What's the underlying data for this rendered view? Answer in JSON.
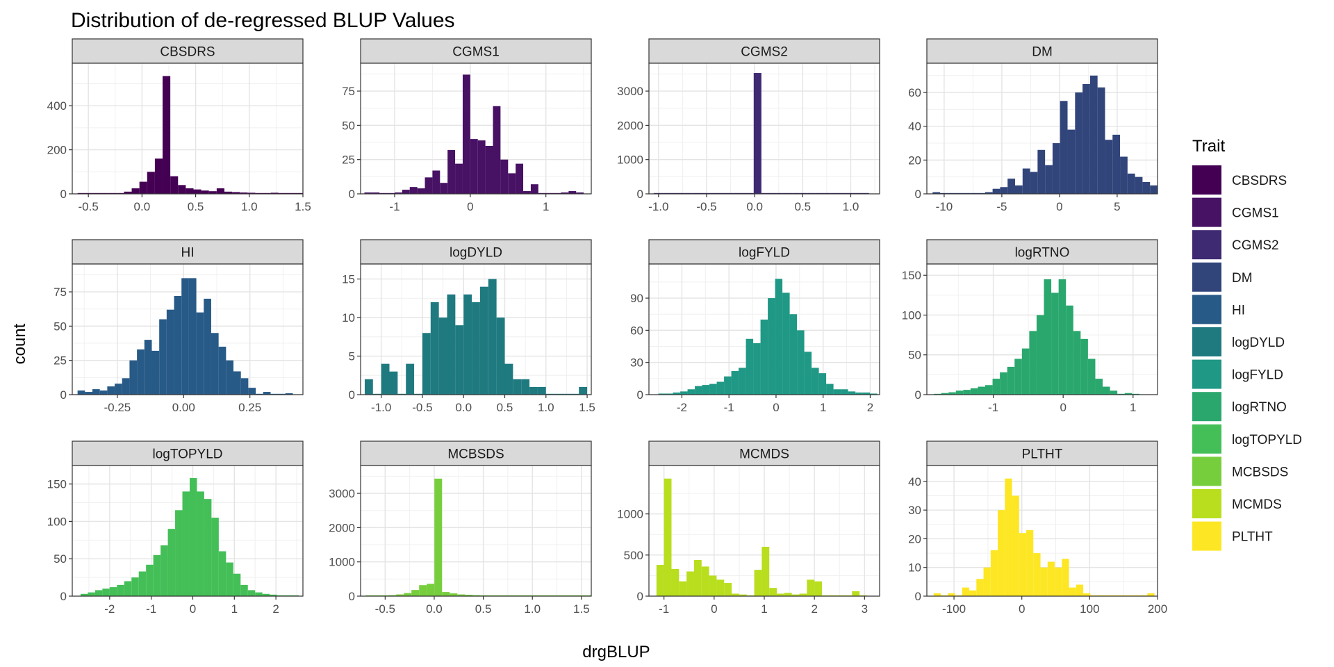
{
  "chart_data": {
    "type": "bar",
    "title": "Distribution of de-regressed BLUP Values",
    "xlabel": "drgBLUP",
    "ylabel": "count",
    "grid": true,
    "legend": {
      "title": "Trait",
      "placement": "right",
      "entries": [
        {
          "label": "CBSDRS",
          "color": "#440154"
        },
        {
          "label": "CGMS1",
          "color": "#471164"
        },
        {
          "label": "CGMS2",
          "color": "#3E2A72"
        },
        {
          "label": "DM",
          "color": "#31457B"
        },
        {
          "label": "HI",
          "color": "#275A87"
        },
        {
          "label": "logDYLD",
          "color": "#1F7A80"
        },
        {
          "label": "logFYLD",
          "color": "#1F9885"
        },
        {
          "label": "logRTNO",
          "color": "#2AA76D"
        },
        {
          "label": "logTOPYLD",
          "color": "#44BF57"
        },
        {
          "label": "MCBSDS",
          "color": "#77CE3D"
        },
        {
          "label": "MCMDS",
          "color": "#B8DE1E"
        },
        {
          "label": "PLTHT",
          "color": "#FDE725"
        }
      ]
    },
    "panels": [
      {
        "name": "CBSDRS",
        "color": "#440154",
        "xlim": [
          -0.65,
          1.5
        ],
        "ylim": [
          0,
          560
        ],
        "xticks": [
          -0.5,
          0.0,
          0.5,
          1.0,
          1.5
        ],
        "xtick_labels": [
          "-0.5",
          "0.0",
          "0.5",
          "1.0",
          "1.5"
        ],
        "yticks": [
          0,
          200,
          400
        ],
        "ytick_labels": [
          "0",
          "200",
          "400"
        ],
        "bin_start": -0.6,
        "bin_width": 0.072,
        "counts": [
          0,
          0,
          0,
          0,
          0,
          3,
          10,
          25,
          55,
          100,
          160,
          535,
          80,
          40,
          25,
          20,
          15,
          12,
          25,
          10,
          8,
          6,
          5,
          3,
          3,
          5,
          3,
          2,
          2,
          2
        ]
      },
      {
        "name": "CGMS1",
        "color": "#471164",
        "xlim": [
          -1.45,
          1.6
        ],
        "ylim": [
          0,
          90
        ],
        "xticks": [
          -1,
          0,
          1
        ],
        "xtick_labels": [
          "-1",
          "0",
          "1"
        ],
        "yticks": [
          0,
          25,
          50,
          75
        ],
        "ytick_labels": [
          "0",
          "25",
          "50",
          "75"
        ],
        "bin_start": -1.4,
        "bin_width": 0.1,
        "counts": [
          1,
          1,
          0,
          0,
          1,
          3,
          5,
          4,
          12,
          17,
          8,
          32,
          22,
          87,
          40,
          39,
          35,
          64,
          25,
          15,
          22,
          2,
          7,
          0,
          0,
          0,
          1,
          2,
          1
        ]
      },
      {
        "name": "CGMS2",
        "color": "#3E2A72",
        "xlim": [
          -1.1,
          1.3
        ],
        "ylim": [
          0,
          3600
        ],
        "xticks": [
          -1.0,
          -0.5,
          0.0,
          0.5,
          1.0
        ],
        "xtick_labels": [
          "-1.0",
          "-0.5",
          "0.0",
          "0.5",
          "1.0"
        ],
        "yticks": [
          0,
          1000,
          2000,
          3000
        ],
        "ytick_labels": [
          "0",
          "1000",
          "2000",
          "3000"
        ],
        "bin_start": -1.05,
        "bin_width": 0.08,
        "counts": [
          0,
          0,
          0,
          0,
          0,
          0,
          0,
          0,
          0,
          0,
          0,
          0,
          0,
          3528,
          0,
          0,
          0,
          0,
          0,
          0,
          0,
          0,
          0,
          0,
          0,
          0,
          0,
          0
        ]
      },
      {
        "name": "DM",
        "color": "#31457B",
        "xlim": [
          -11.5,
          8.5
        ],
        "ylim": [
          0,
          73
        ],
        "xticks": [
          -10,
          -5,
          0,
          5
        ],
        "xtick_labels": [
          "-10",
          "-5",
          "0",
          "5"
        ],
        "yticks": [
          0,
          20,
          40,
          60
        ],
        "ytick_labels": [
          "0",
          "20",
          "40",
          "60"
        ],
        "bin_start": -11,
        "bin_width": 0.65,
        "counts": [
          1,
          0,
          0,
          0,
          0,
          0,
          0,
          1,
          3,
          4,
          9,
          5,
          15,
          13,
          26,
          17,
          30,
          55,
          38,
          60,
          65,
          70,
          63,
          32,
          35,
          22,
          12,
          10,
          7,
          5,
          3,
          2
        ]
      },
      {
        "name": "HI",
        "color": "#275A87",
        "xlim": [
          -0.42,
          0.45
        ],
        "ylim": [
          0,
          90
        ],
        "xticks": [
          -0.25,
          0.0,
          0.25
        ],
        "xtick_labels": [
          "-0.25",
          "0.00",
          "0.25"
        ],
        "yticks": [
          0,
          25,
          50,
          75
        ],
        "ytick_labels": [
          "0",
          "25",
          "50",
          "75"
        ],
        "bin_start": -0.4,
        "bin_width": 0.028,
        "counts": [
          3,
          2,
          4,
          3,
          6,
          8,
          12,
          25,
          33,
          40,
          32,
          55,
          62,
          72,
          85,
          85,
          60,
          70,
          45,
          35,
          25,
          17,
          12,
          5,
          0,
          2,
          0,
          0,
          1
        ]
      },
      {
        "name": "logDYLD",
        "color": "#1F7A80",
        "xlim": [
          -1.25,
          1.55
        ],
        "ylim": [
          0,
          16
        ],
        "xticks": [
          -1.0,
          -0.5,
          0.0,
          0.5,
          1.0,
          1.5
        ],
        "xtick_labels": [
          "-1.0",
          "-0.5",
          "0.0",
          "0.5",
          "1.0",
          "1.5"
        ],
        "yticks": [
          0,
          5,
          10,
          15
        ],
        "ytick_labels": [
          "0",
          "5",
          "10",
          "15"
        ],
        "bin_start": -1.2,
        "bin_width": 0.1,
        "counts": [
          2,
          0,
          4,
          3,
          0,
          4,
          0,
          8,
          12,
          10,
          13,
          9,
          13,
          12,
          14,
          15,
          10,
          4,
          2,
          2,
          1,
          1,
          0,
          0,
          0,
          0,
          1
        ]
      },
      {
        "name": "logFYLD",
        "color": "#1F9885",
        "xlim": [
          -2.7,
          2.2
        ],
        "ylim": [
          0,
          115
        ],
        "xticks": [
          -2,
          -1,
          0,
          1,
          2
        ],
        "xtick_labels": [
          "-2",
          "-1",
          "0",
          "1",
          "2"
        ],
        "yticks": [
          0,
          30,
          60,
          90
        ],
        "ytick_labels": [
          "0",
          "30",
          "60",
          "90"
        ],
        "bin_start": -2.5,
        "bin_width": 0.155,
        "counts": [
          1,
          1,
          2,
          3,
          5,
          8,
          9,
          10,
          12,
          17,
          22,
          25,
          52,
          48,
          70,
          90,
          108,
          95,
          75,
          60,
          40,
          25,
          20,
          10,
          5,
          5,
          3,
          2,
          2,
          1
        ]
      },
      {
        "name": "logRTNO",
        "color": "#2AA76D",
        "xlim": [
          -1.95,
          1.35
        ],
        "ylim": [
          0,
          155
        ],
        "xticks": [
          -1,
          0,
          1
        ],
        "xtick_labels": [
          "-1",
          "0",
          "1"
        ],
        "yticks": [
          0,
          50,
          100,
          150
        ],
        "ytick_labels": [
          "0",
          "50",
          "100",
          "150"
        ],
        "bin_start": -1.85,
        "bin_width": 0.105,
        "counts": [
          1,
          2,
          3,
          5,
          6,
          8,
          10,
          12,
          20,
          28,
          35,
          45,
          58,
          80,
          100,
          145,
          128,
          145,
          112,
          80,
          70,
          45,
          20,
          10,
          5,
          0,
          2,
          1
        ]
      },
      {
        "name": "logTOPYLD",
        "color": "#44BF57",
        "xlim": [
          -2.9,
          2.65
        ],
        "ylim": [
          0,
          165
        ],
        "xticks": [
          -2,
          -1,
          0,
          1,
          2
        ],
        "xtick_labels": [
          "-2",
          "-1",
          "0",
          "1",
          "2"
        ],
        "yticks": [
          0,
          50,
          100,
          150
        ],
        "ytick_labels": [
          "0",
          "50",
          "100",
          "150"
        ],
        "bin_start": -2.7,
        "bin_width": 0.175,
        "counts": [
          3,
          5,
          8,
          10,
          12,
          15,
          20,
          25,
          33,
          42,
          55,
          68,
          90,
          115,
          140,
          158,
          140,
          130,
          105,
          60,
          45,
          30,
          15,
          8,
          5,
          3,
          2,
          1,
          1,
          1
        ]
      },
      {
        "name": "MCBSDS",
        "color": "#77CE3D",
        "xlim": [
          -0.75,
          1.6
        ],
        "ylim": [
          0,
          3600
        ],
        "xticks": [
          -0.5,
          0.0,
          0.5,
          1.0,
          1.5
        ],
        "xtick_labels": [
          "-0.5",
          "0.0",
          "0.5",
          "1.0",
          "1.5"
        ],
        "yticks": [
          0,
          1000,
          2000,
          3000
        ],
        "ytick_labels": [
          "0",
          "1000",
          "2000",
          "3000"
        ],
        "bin_start": -0.7,
        "bin_width": 0.078,
        "counts": [
          10,
          15,
          20,
          30,
          50,
          90,
          180,
          320,
          360,
          3430,
          120,
          80,
          50,
          40,
          30,
          25,
          20,
          15,
          15,
          10,
          10,
          8,
          6,
          5,
          4,
          3,
          3,
          2,
          2,
          2
        ]
      },
      {
        "name": "MCMDS",
        "color": "#B8DE1E",
        "xlim": [
          -1.3,
          3.3
        ],
        "ylim": [
          0,
          1500
        ],
        "xticks": [
          -1,
          0,
          1,
          2,
          3
        ],
        "xtick_labels": [
          "-1",
          "0",
          "1",
          "2",
          "3"
        ],
        "yticks": [
          0,
          500,
          1000
        ],
        "ytick_labels": [
          "0",
          "500",
          "1000"
        ],
        "bin_start": -1.15,
        "bin_width": 0.15,
        "counts": [
          380,
          1430,
          330,
          180,
          300,
          440,
          360,
          250,
          200,
          160,
          30,
          20,
          10,
          320,
          600,
          100,
          30,
          40,
          20,
          30,
          200,
          180,
          10,
          5,
          5,
          5,
          60,
          10
        ]
      },
      {
        "name": "PLTHT",
        "color": "#FDE725",
        "xlim": [
          -140,
          200
        ],
        "ylim": [
          0,
          43
        ],
        "xticks": [
          -100,
          0,
          100,
          200
        ],
        "xtick_labels": [
          "-100",
          "0",
          "100",
          "200"
        ],
        "yticks": [
          0,
          10,
          20,
          30,
          40
        ],
        "ytick_labels": [
          "0",
          "10",
          "20",
          "30",
          "40"
        ],
        "bin_start": -130,
        "bin_width": 10.5,
        "counts": [
          1,
          0,
          1,
          0,
          3,
          2,
          6,
          10,
          16,
          30,
          41,
          35,
          22,
          23,
          15,
          10,
          12,
          10,
          13,
          3,
          4,
          1,
          0,
          0,
          0,
          0,
          0,
          0,
          0,
          0,
          1
        ]
      }
    ]
  }
}
